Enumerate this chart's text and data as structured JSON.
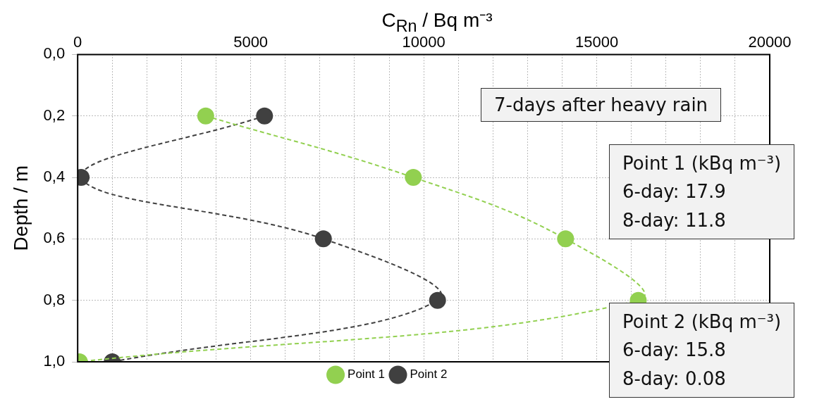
{
  "chart_data": {
    "type": "line",
    "xlabel": "C$_{Rn}$ / Bq m⁻³",
    "ylabel": "Depth / m",
    "xlim": [
      0,
      20000
    ],
    "xticks": [
      0,
      {
        "value": 1000,
        "label": null
      },
      {
        "value": 2000,
        "label": null
      },
      {
        "value": 3000,
        "label": null
      },
      {
        "value": 4000,
        "label": null
      },
      5000,
      {
        "value": 6000,
        "label": null
      },
      {
        "value": 7000,
        "label": null
      },
      {
        "value": 8000,
        "label": null
      },
      {
        "value": 9000,
        "label": null
      },
      10000,
      {
        "value": 11000,
        "label": null
      },
      {
        "value": 12000,
        "label": null
      },
      {
        "value": 13000,
        "label": null
      },
      {
        "value": 14000,
        "label": null
      },
      15000,
      {
        "value": 16000,
        "label": null
      },
      {
        "value": 17000,
        "label": null
      },
      {
        "value": 18000,
        "label": null
      },
      {
        "value": 19000,
        "label": null
      },
      20000
    ],
    "ylim": [
      1,
      0
    ],
    "yticks": [
      {
        "value": 0,
        "label": "0,0"
      },
      {
        "value": 0.2,
        "label": "0,2"
      },
      {
        "value": 0.4,
        "label": "0,4"
      },
      {
        "value": 0.6,
        "label": "0,6"
      },
      {
        "value": 0.8,
        "label": "0,8"
      },
      {
        "value": 1,
        "label": "1,0"
      }
    ],
    "series": [
      {
        "name": "Point 1",
        "color": "#92d050",
        "x": [
          3700,
          9700,
          14100,
          16200,
          50
        ],
        "values": [
          0.2,
          0.4,
          0.6,
          0.8,
          1.0
        ]
      },
      {
        "name": "Point 2",
        "color": "#404040",
        "x": [
          5400,
          100,
          7100,
          10400,
          1000
        ],
        "values": [
          0.2,
          0.4,
          0.6,
          0.8,
          1.0
        ]
      }
    ],
    "annotations": [
      "7-days after heavy rain",
      "Point 1 (kBq m⁻³)\n6-day: 17.9\n8-day: 11.8",
      "Point 2 (kBq m⁻³)\n6-day: 15.8\n8-day: 0.08"
    ],
    "grid": true,
    "legend": "bottom",
    "marker": "circle",
    "line_style": "dashed"
  }
}
